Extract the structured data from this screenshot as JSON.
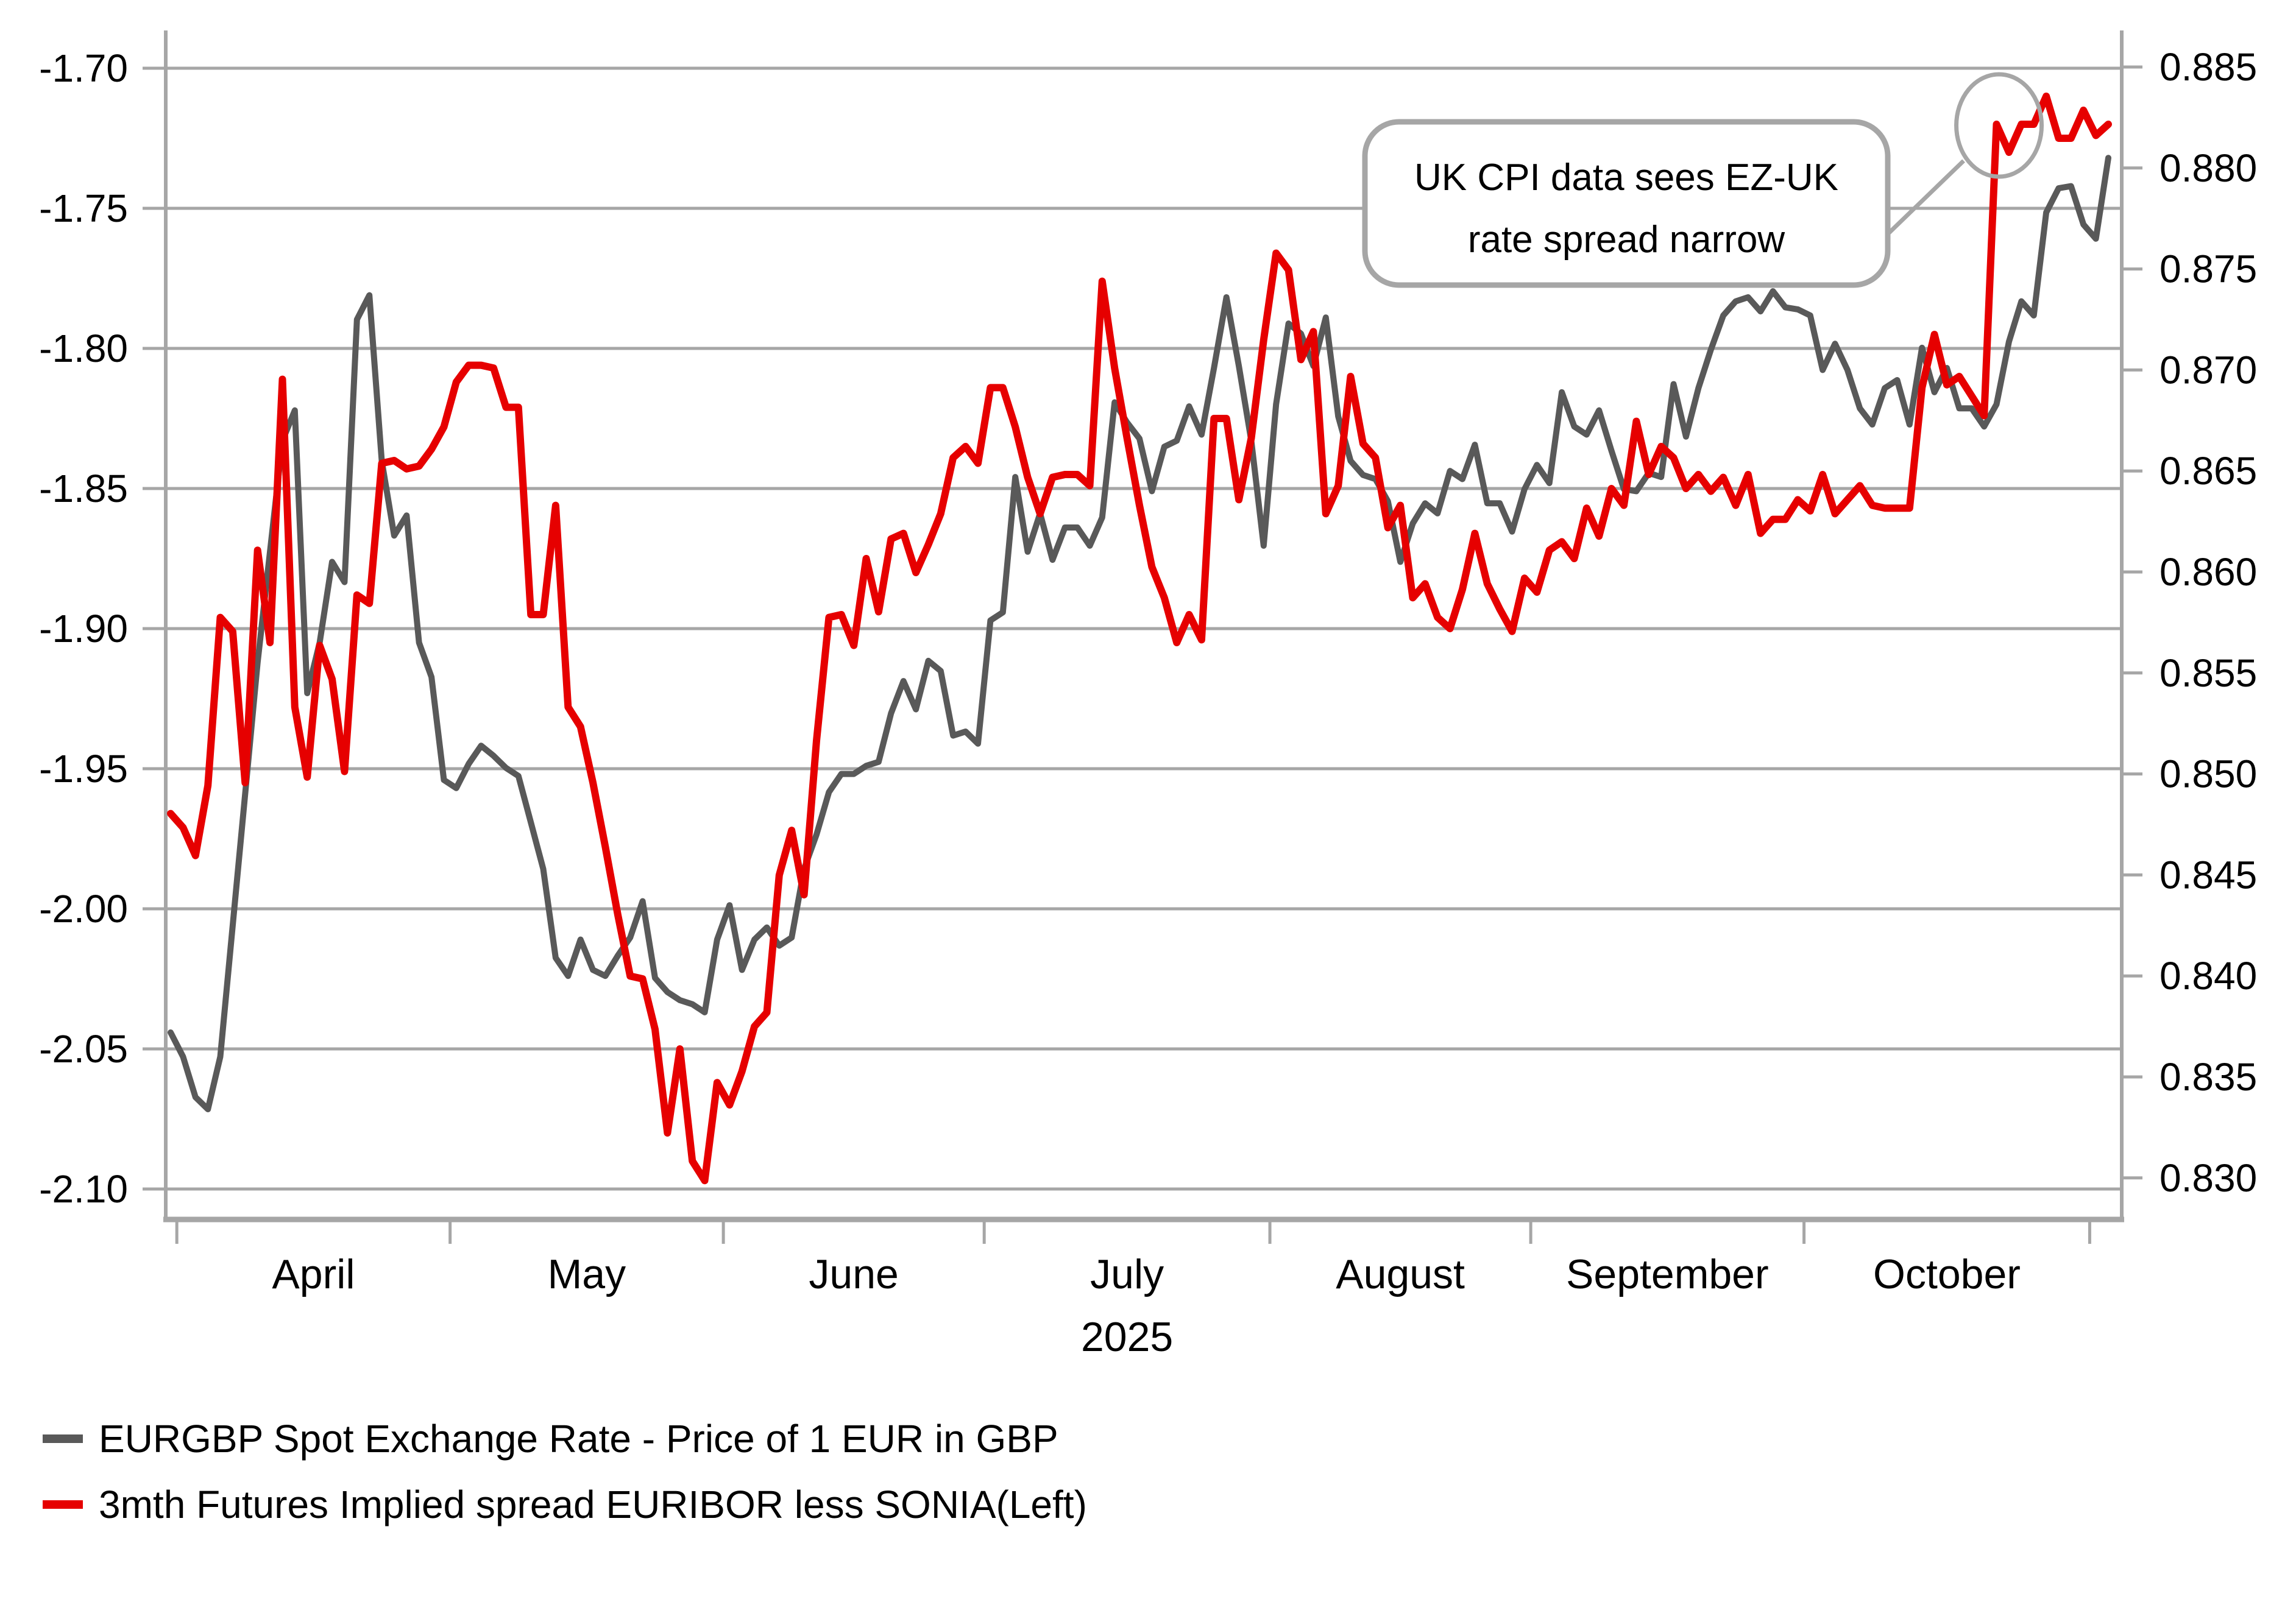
{
  "chart_data": {
    "type": "line",
    "title": "",
    "grid": "horizontal",
    "legend_position": "bottom-left",
    "x_dates": [
      "2025-03-31",
      "2025-04-01",
      "2025-04-02",
      "2025-04-03",
      "2025-04-04",
      "2025-04-07",
      "2025-04-08",
      "2025-04-09",
      "2025-04-10",
      "2025-04-11",
      "2025-04-14",
      "2025-04-15",
      "2025-04-16",
      "2025-04-17",
      "2025-04-18",
      "2025-04-21",
      "2025-04-22",
      "2025-04-23",
      "2025-04-24",
      "2025-04-25",
      "2025-04-28",
      "2025-04-29",
      "2025-04-30",
      "2025-05-01",
      "2025-05-02",
      "2025-05-05",
      "2025-05-06",
      "2025-05-07",
      "2025-05-08",
      "2025-05-09",
      "2025-05-12",
      "2025-05-13",
      "2025-05-14",
      "2025-05-15",
      "2025-05-16",
      "2025-05-19",
      "2025-05-20",
      "2025-05-21",
      "2025-05-22",
      "2025-05-23",
      "2025-05-26",
      "2025-05-27",
      "2025-05-28",
      "2025-05-29",
      "2025-05-30",
      "2025-06-02",
      "2025-06-03",
      "2025-06-04",
      "2025-06-05",
      "2025-06-06",
      "2025-06-09",
      "2025-06-10",
      "2025-06-11",
      "2025-06-12",
      "2025-06-13",
      "2025-06-16",
      "2025-06-17",
      "2025-06-18",
      "2025-06-19",
      "2025-06-20",
      "2025-06-23",
      "2025-06-24",
      "2025-06-25",
      "2025-06-26",
      "2025-06-27",
      "2025-06-30",
      "2025-07-01",
      "2025-07-02",
      "2025-07-03",
      "2025-07-04",
      "2025-07-07",
      "2025-07-08",
      "2025-07-09",
      "2025-07-10",
      "2025-07-11",
      "2025-07-14",
      "2025-07-15",
      "2025-07-16",
      "2025-07-17",
      "2025-07-18",
      "2025-07-21",
      "2025-07-22",
      "2025-07-23",
      "2025-07-24",
      "2025-07-25",
      "2025-07-28",
      "2025-07-29",
      "2025-07-30",
      "2025-07-31",
      "2025-08-01",
      "2025-08-04",
      "2025-08-05",
      "2025-08-06",
      "2025-08-07",
      "2025-08-08",
      "2025-08-11",
      "2025-08-12",
      "2025-08-13",
      "2025-08-14",
      "2025-08-15",
      "2025-08-18",
      "2025-08-19",
      "2025-08-20",
      "2025-08-21",
      "2025-08-22",
      "2025-08-25",
      "2025-08-26",
      "2025-08-27",
      "2025-08-28",
      "2025-08-29",
      "2025-09-01",
      "2025-09-02",
      "2025-09-03",
      "2025-09-04",
      "2025-09-05",
      "2025-09-08",
      "2025-09-09",
      "2025-09-10",
      "2025-09-11",
      "2025-09-12",
      "2025-09-15",
      "2025-09-16",
      "2025-09-17",
      "2025-09-18",
      "2025-09-19",
      "2025-09-22",
      "2025-09-23",
      "2025-09-24",
      "2025-09-25",
      "2025-09-26",
      "2025-09-29",
      "2025-09-30",
      "2025-10-01",
      "2025-10-02",
      "2025-10-03",
      "2025-10-06",
      "2025-10-07",
      "2025-10-08",
      "2025-10-09",
      "2025-10-10",
      "2025-10-13",
      "2025-10-14",
      "2025-10-15",
      "2025-10-16",
      "2025-10-17",
      "2025-10-20",
      "2025-10-21",
      "2025-10-22",
      "2025-10-23",
      "2025-10-24",
      "2025-10-27",
      "2025-10-28",
      "2025-10-29",
      "2025-10-30",
      "2025-10-31",
      "2025-11-03",
      "2025-11-04"
    ],
    "series": [
      {
        "name": "EURGBP Spot Exchange Rate - Price of 1 EUR in GBP",
        "axis": "right",
        "color": "#595959",
        "values": [
          0.8372,
          0.836,
          0.834,
          0.8334,
          0.836,
          0.8425,
          0.849,
          0.8555,
          0.861,
          0.8665,
          0.868,
          0.854,
          0.8565,
          0.8605,
          0.8595,
          0.8725,
          0.8737,
          0.8655,
          0.8618,
          0.8628,
          0.8565,
          0.8548,
          0.8497,
          0.8493,
          0.8505,
          0.8514,
          0.8509,
          0.8503,
          0.8499,
          0.8476,
          0.8453,
          0.8409,
          0.84,
          0.8418,
          0.8403,
          0.84,
          0.841,
          0.8419,
          0.8437,
          0.8399,
          0.8392,
          0.8388,
          0.8386,
          0.8382,
          0.8418,
          0.8435,
          0.8403,
          0.8418,
          0.8424,
          0.8415,
          0.8419,
          0.8453,
          0.847,
          0.8491,
          0.85,
          0.85,
          0.8504,
          0.8506,
          0.853,
          0.8546,
          0.8532,
          0.8556,
          0.8551,
          0.8519,
          0.8521,
          0.8515,
          0.8576,
          0.858,
          0.8647,
          0.861,
          0.8629,
          0.8606,
          0.8622,
          0.8622,
          0.8613,
          0.8627,
          0.8684,
          0.8674,
          0.8666,
          0.864,
          0.8662,
          0.8665,
          0.8682,
          0.8668,
          0.8701,
          0.8736,
          0.8702,
          0.8665,
          0.8613,
          0.8683,
          0.8723,
          0.8718,
          0.8702,
          0.8726,
          0.8677,
          0.8655,
          0.8648,
          0.8646,
          0.8635,
          0.8605,
          0.8624,
          0.8634,
          0.8629,
          0.865,
          0.8646,
          0.8663,
          0.8634,
          0.8634,
          0.862,
          0.8641,
          0.8653,
          0.8644,
          0.8689,
          0.8672,
          0.8668,
          0.868,
          0.866,
          0.8641,
          0.864,
          0.8649,
          0.8647,
          0.8693,
          0.8667,
          0.8691,
          0.871,
          0.8727,
          0.8734,
          0.8736,
          0.8729,
          0.8739,
          0.8731,
          0.873,
          0.8727,
          0.87,
          0.8713,
          0.87,
          0.8681,
          0.8673,
          0.8691,
          0.8695,
          0.8673,
          0.8711,
          0.8689,
          0.8701,
          0.8681,
          0.8681,
          0.8672,
          0.8683,
          0.8714,
          0.8734,
          0.8727,
          0.8778,
          0.879,
          0.8791,
          0.8772,
          0.8765,
          0.8805
        ]
      },
      {
        "name": "3mth Futures Implied spread EURIBOR less SONIA(Left)",
        "axis": "left",
        "color": "#e60000",
        "values": [
          -1.966,
          -1.971,
          -1.981,
          -1.956,
          -1.896,
          -1.901,
          -1.955,
          -1.872,
          -1.905,
          -1.811,
          -1.928,
          -1.953,
          -1.906,
          -1.918,
          -1.951,
          -1.888,
          -1.891,
          -1.841,
          -1.84,
          -1.843,
          -1.842,
          -1.836,
          -1.828,
          -1.812,
          -1.806,
          -1.806,
          -1.807,
          -1.821,
          -1.821,
          -1.895,
          -1.895,
          -1.856,
          -1.928,
          -1.935,
          -1.955,
          -1.978,
          -2.002,
          -2.024,
          -2.025,
          -2.043,
          -2.08,
          -2.05,
          -2.09,
          -2.097,
          -2.062,
          -2.07,
          -2.058,
          -2.042,
          -2.037,
          -1.988,
          -1.972,
          -1.995,
          -1.94,
          -1.896,
          -1.895,
          -1.906,
          -1.875,
          -1.894,
          -1.868,
          -1.866,
          -1.88,
          -1.87,
          -1.859,
          -1.839,
          -1.835,
          -1.841,
          -1.814,
          -1.814,
          -1.828,
          -1.846,
          -1.859,
          -1.846,
          -1.845,
          -1.845,
          -1.849,
          -1.776,
          -1.807,
          -1.832,
          -1.856,
          -1.878,
          -1.889,
          -1.905,
          -1.895,
          -1.904,
          -1.825,
          -1.825,
          -1.854,
          -1.832,
          -1.797,
          -1.766,
          -1.772,
          -1.804,
          -1.794,
          -1.859,
          -1.849,
          -1.81,
          -1.834,
          -1.839,
          -1.864,
          -1.856,
          -1.889,
          -1.884,
          -1.896,
          -1.9,
          -1.886,
          -1.866,
          -1.884,
          -1.893,
          -1.901,
          -1.882,
          -1.887,
          -1.872,
          -1.869,
          -1.875,
          -1.857,
          -1.867,
          -1.85,
          -1.856,
          -1.826,
          -1.845,
          -1.835,
          -1.839,
          -1.85,
          -1.845,
          -1.851,
          -1.846,
          -1.856,
          -1.845,
          -1.866,
          -1.861,
          -1.861,
          -1.854,
          -1.858,
          -1.845,
          -1.859,
          -1.854,
          -1.849,
          -1.856,
          -1.857,
          -1.857,
          -1.857,
          -1.814,
          -1.795,
          -1.813,
          -1.81,
          -1.817,
          -1.824,
          -1.72,
          -1.73,
          -1.72,
          -1.72,
          -1.71,
          -1.725,
          -1.725,
          -1.715,
          -1.724,
          -1.72
        ]
      }
    ],
    "left_axis": {
      "min": -2.1,
      "max": -1.7,
      "step": 0.05,
      "tick_labels": [
        "-1.70",
        "-1.75",
        "-1.80",
        "-1.85",
        "-1.90",
        "-1.95",
        "-2.00",
        "-2.05",
        "-2.10"
      ]
    },
    "right_axis": {
      "min": 0.83,
      "max": 0.885,
      "step": 0.005,
      "tick_labels": [
        "0.885",
        "0.880",
        "0.875",
        "0.870",
        "0.865",
        "0.860",
        "0.855",
        "0.850",
        "0.845",
        "0.840",
        "0.835",
        "0.830"
      ]
    },
    "x_axis": {
      "month_labels": [
        "April",
        "May",
        "June",
        "July",
        "August",
        "September",
        "October"
      ],
      "year_label": "2025"
    },
    "annotation": {
      "line1": "UK CPI data sees EZ-UK",
      "line2": "rate spread narrow",
      "target_date": "2025-10-22",
      "target_value": -1.72
    },
    "colors": {
      "grid": "#a6a6a6",
      "axis": "#a6a6a6",
      "callout": "#a6a6a6",
      "text": "#000000"
    }
  },
  "legend": {
    "items": [
      {
        "label": "EURGBP Spot Exchange Rate - Price of 1 EUR in GBP",
        "color": "#595959"
      },
      {
        "label": "3mth Futures Implied spread EURIBOR less SONIA(Left)",
        "color": "#e60000"
      }
    ]
  }
}
